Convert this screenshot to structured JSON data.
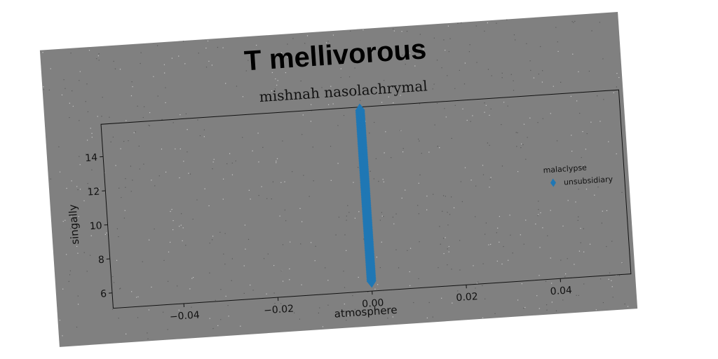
{
  "chart_data": {
    "type": "scatter",
    "suptitle": "T mellivorous",
    "title": "mishnah nasolachrymal",
    "xlabel": "atmosphere",
    "ylabel": "singally",
    "xlim": [
      -0.055,
      0.055
    ],
    "ylim": [
      5.1,
      15.9
    ],
    "xticks": [
      -0.04,
      -0.02,
      0.0,
      0.02,
      0.04
    ],
    "xtick_labels": [
      "−0.04",
      "−0.02",
      "0.00",
      "0.02",
      "0.04"
    ],
    "yticks": [
      6,
      8,
      10,
      12,
      14
    ],
    "ytick_labels": [
      "6",
      "8",
      "10",
      "12",
      "14"
    ],
    "legend": {
      "title": "malaclypse",
      "placement": "center-right",
      "entries": [
        {
          "label": "unsubsidiary",
          "marker": "diamond",
          "color": "#1f77b4"
        }
      ]
    },
    "series": [
      {
        "name": "unsubsidiary",
        "marker": "diamond",
        "color": "#1f77b4",
        "x": [
          0,
          0,
          0,
          0,
          0,
          0,
          0,
          0,
          0,
          0,
          0,
          0,
          0,
          0,
          0,
          0,
          0,
          0,
          0,
          0,
          0,
          0,
          0,
          0,
          0,
          0,
          0,
          0,
          0,
          0,
          0,
          0,
          0,
          0,
          0,
          0,
          0,
          0,
          0,
          0,
          0,
          0,
          0,
          0,
          0,
          0,
          0,
          0,
          0,
          0,
          0,
          0,
          0,
          0,
          0,
          0,
          0,
          0,
          0,
          0,
          0,
          0,
          0,
          0,
          0,
          0,
          0,
          0,
          0,
          0,
          0,
          0,
          0,
          0,
          0,
          0,
          0,
          0,
          0,
          0,
          0,
          0,
          0,
          0,
          0,
          0,
          0,
          0,
          0,
          0,
          0,
          0,
          0,
          0,
          0,
          0,
          0,
          0,
          0,
          0,
          0
        ],
        "y": [
          5.7,
          5.8,
          5.9,
          6.0,
          6.1,
          6.2,
          6.3,
          6.4,
          6.5,
          6.6,
          6.7,
          6.8,
          6.9,
          7.0,
          7.1,
          7.2,
          7.3,
          7.4,
          7.5,
          7.6,
          7.7,
          7.8,
          7.9,
          8.0,
          8.1,
          8.2,
          8.3,
          8.4,
          8.5,
          8.6,
          8.7,
          8.8,
          8.9,
          9.0,
          9.1,
          9.2,
          9.3,
          9.4,
          9.5,
          9.6,
          9.7,
          9.8,
          9.9,
          10.0,
          10.1,
          10.2,
          10.3,
          10.4,
          10.5,
          10.6,
          10.7,
          10.8,
          10.9,
          11.0,
          11.1,
          11.2,
          11.3,
          11.4,
          11.5,
          11.6,
          11.7,
          11.8,
          11.9,
          12.0,
          12.1,
          12.2,
          12.3,
          12.4,
          12.5,
          12.6,
          12.7,
          12.8,
          12.9,
          13.0,
          13.1,
          13.2,
          13.3,
          13.4,
          13.5,
          13.6,
          13.7,
          13.8,
          13.9,
          14.0,
          14.1,
          14.2,
          14.3,
          14.4,
          14.5,
          14.6,
          14.7,
          14.8,
          14.9,
          15.0,
          15.1,
          15.2,
          15.3,
          15.4,
          15.5,
          15.6,
          15.7
        ]
      }
    ]
  },
  "colors": {
    "background": "#ffffff",
    "figure": "#808080",
    "axes_frame": "#111111",
    "series": "#1f77b4"
  }
}
